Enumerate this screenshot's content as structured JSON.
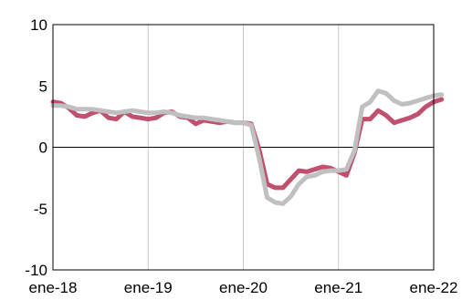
{
  "chart_data": {
    "type": "line",
    "title": "",
    "xlabel": "",
    "ylabel": "",
    "xlim": [
      "2018-01",
      "2022-01"
    ],
    "ylim": [
      -10,
      10
    ],
    "x_tick_labels": [
      "ene-18",
      "ene-19",
      "ene-20",
      "ene-21",
      "ene-22"
    ],
    "x_ticks": [
      "2018-01",
      "2019-01",
      "2020-01",
      "2021-01",
      "2022-01"
    ],
    "y_ticks": [
      -10,
      -5,
      0,
      5,
      10
    ],
    "grid": {
      "x": true,
      "y": false
    },
    "zero_line": true,
    "legend": "none",
    "x": [
      "2018-01",
      "2018-02",
      "2018-03",
      "2018-04",
      "2018-05",
      "2018-06",
      "2018-07",
      "2018-08",
      "2018-09",
      "2018-10",
      "2018-11",
      "2018-12",
      "2019-01",
      "2019-02",
      "2019-03",
      "2019-04",
      "2019-05",
      "2019-06",
      "2019-07",
      "2019-08",
      "2019-09",
      "2019-10",
      "2019-11",
      "2019-12",
      "2020-01",
      "2020-02",
      "2020-03",
      "2020-04",
      "2020-05",
      "2020-06",
      "2020-07",
      "2020-08",
      "2020-09",
      "2020-10",
      "2020-11",
      "2020-12",
      "2021-01",
      "2021-02",
      "2021-03",
      "2021-04",
      "2021-05",
      "2021-06",
      "2021-07",
      "2021-08",
      "2021-09",
      "2021-10",
      "2021-11",
      "2021-12",
      "2022-01",
      "2022-02"
    ],
    "series": [
      {
        "color": "#c0506e",
        "values": [
          3.7,
          3.6,
          3.2,
          2.6,
          2.5,
          2.8,
          3.0,
          2.4,
          2.3,
          2.9,
          2.5,
          2.4,
          2.3,
          2.4,
          2.8,
          2.9,
          2.5,
          2.4,
          1.9,
          2.2,
          2.1,
          2.0,
          2.1,
          2.0,
          2.0,
          1.9,
          -0.2,
          -3.0,
          -3.3,
          -3.3,
          -2.6,
          -1.9,
          -2.0,
          -1.8,
          -1.6,
          -1.7,
          -2.0,
          -2.3,
          -0.5,
          2.3,
          2.3,
          3.0,
          2.6,
          2.0,
          2.2,
          2.4,
          2.7,
          3.3,
          3.7,
          3.9
        ]
      },
      {
        "color": "#c0c0c0",
        "values": [
          3.4,
          3.4,
          3.3,
          3.1,
          3.1,
          3.1,
          3.0,
          2.9,
          2.8,
          2.9,
          3.0,
          2.9,
          2.8,
          2.8,
          2.9,
          2.8,
          2.6,
          2.5,
          2.4,
          2.4,
          2.3,
          2.2,
          2.1,
          2.0,
          2.0,
          1.8,
          -0.9,
          -4.1,
          -4.5,
          -4.6,
          -4.0,
          -3.0,
          -2.4,
          -2.3,
          -2.0,
          -1.9,
          -1.9,
          -1.8,
          -0.3,
          3.3,
          3.7,
          4.6,
          4.4,
          3.8,
          3.5,
          3.6,
          3.8,
          4.0,
          4.2,
          4.3
        ]
      }
    ]
  }
}
